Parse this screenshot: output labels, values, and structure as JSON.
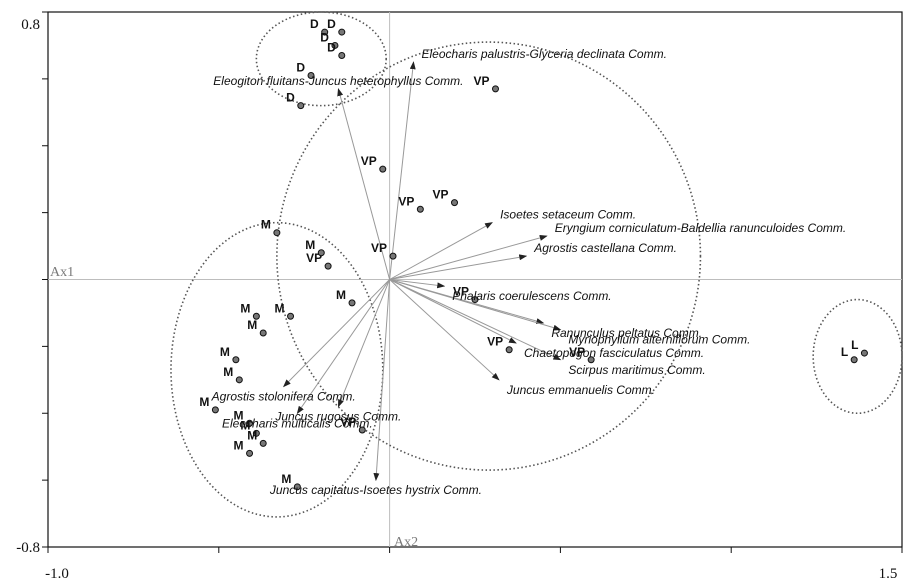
{
  "chart_data": {
    "type": "scatter",
    "title": "",
    "xlabel": "",
    "ylabel": "",
    "xlim": [
      -1.0,
      1.5
    ],
    "ylim": [
      -0.8,
      0.8
    ],
    "x_tick_labels": [
      "-1.0",
      "1.5"
    ],
    "y_tick_labels": [
      "0.8",
      "-0.8"
    ],
    "axis_names": {
      "horizontal": "Ax1",
      "vertical": "Ax2"
    },
    "grid": false,
    "legend": "none",
    "colors": {
      "axes": "#111111",
      "origin_lines": "#bdbdbd",
      "arrows": "#999999",
      "ellipses": "#555555",
      "points": "#777777"
    },
    "sites": [
      {
        "label": "D",
        "x": -0.19,
        "y": 0.74
      },
      {
        "label": "D",
        "x": -0.14,
        "y": 0.74
      },
      {
        "label": "D",
        "x": -0.16,
        "y": 0.7
      },
      {
        "label": "D",
        "x": -0.14,
        "y": 0.67
      },
      {
        "label": "D",
        "x": -0.23,
        "y": 0.61
      },
      {
        "label": "D",
        "x": -0.26,
        "y": 0.52
      },
      {
        "label": "VP",
        "x": 0.31,
        "y": 0.57
      },
      {
        "label": "VP",
        "x": -0.02,
        "y": 0.33
      },
      {
        "label": "VP",
        "x": 0.09,
        "y": 0.21
      },
      {
        "label": "VP",
        "x": 0.19,
        "y": 0.23
      },
      {
        "label": "VP",
        "x": 0.01,
        "y": 0.07
      },
      {
        "label": "VP",
        "x": -0.18,
        "y": 0.04
      },
      {
        "label": "VP",
        "x": 0.25,
        "y": -0.06
      },
      {
        "label": "VP",
        "x": 0.35,
        "y": -0.21
      },
      {
        "label": "VP",
        "x": 0.59,
        "y": -0.24
      },
      {
        "label": "VP",
        "x": -0.08,
        "y": -0.45
      },
      {
        "label": "M",
        "x": -0.33,
        "y": 0.14
      },
      {
        "label": "M",
        "x": -0.2,
        "y": 0.08
      },
      {
        "label": "M",
        "x": -0.11,
        "y": -0.07
      },
      {
        "label": "M",
        "x": -0.29,
        "y": -0.11
      },
      {
        "label": "M",
        "x": -0.39,
        "y": -0.11
      },
      {
        "label": "M",
        "x": -0.37,
        "y": -0.16
      },
      {
        "label": "M",
        "x": -0.45,
        "y": -0.24
      },
      {
        "label": "M",
        "x": -0.44,
        "y": -0.3
      },
      {
        "label": "M",
        "x": -0.51,
        "y": -0.39
      },
      {
        "label": "M",
        "x": -0.41,
        "y": -0.43
      },
      {
        "label": "M",
        "x": -0.39,
        "y": -0.46
      },
      {
        "label": "M",
        "x": -0.37,
        "y": -0.49
      },
      {
        "label": "M",
        "x": -0.41,
        "y": -0.52
      },
      {
        "label": "M",
        "x": -0.27,
        "y": -0.62
      },
      {
        "label": "L",
        "x": 1.39,
        "y": -0.22
      },
      {
        "label": "L",
        "x": 1.36,
        "y": -0.24
      }
    ],
    "communities": [
      {
        "name": "Eleocharis palustris-Glyceria declinata Comm.",
        "x": 0.07,
        "y": 0.65
      },
      {
        "name": "Eleogiton fluitans-Juncus heterophyllus Comm.",
        "x": -0.15,
        "y": 0.57
      },
      {
        "name": "Isoetes setaceum Comm.",
        "x": 0.3,
        "y": 0.17
      },
      {
        "name": "Eryngium corniculatum-Baldellia ranunculoides Comm.",
        "x": 0.46,
        "y": 0.13
      },
      {
        "name": "Agrostis castellana Comm.",
        "x": 0.4,
        "y": 0.07
      },
      {
        "name": "Phalaris coerulescens Comm.",
        "x": 0.16,
        "y": -0.02
      },
      {
        "name": "Ranunculus peltatus Comm.",
        "x": 0.45,
        "y": -0.13
      },
      {
        "name": "Myriophyllum alterniflorum Comm.",
        "x": 0.5,
        "y": -0.15
      },
      {
        "name": "Chaetopogon fasciculatus Comm.",
        "x": 0.37,
        "y": -0.19
      },
      {
        "name": "Scirpus maritimus Comm.",
        "x": 0.5,
        "y": -0.24
      },
      {
        "name": "Juncus emmanuelis Comm.",
        "x": 0.32,
        "y": -0.3
      },
      {
        "name": "Agrostis stolonifera Comm.",
        "x": -0.31,
        "y": -0.32
      },
      {
        "name": "Juncus rugosus Comm.",
        "x": -0.15,
        "y": -0.38
      },
      {
        "name": "Eleocharis multicalis Comm.",
        "x": -0.27,
        "y": -0.4
      },
      {
        "name": "Juncus capitatus-Isoetes hystrix Comm.",
        "x": -0.04,
        "y": -0.6
      }
    ],
    "groups": [
      {
        "name": "D",
        "cx": -0.2,
        "cy": 0.66,
        "rx": 0.19,
        "ry": 0.14
      },
      {
        "name": "VP",
        "cx": 0.29,
        "cy": 0.07,
        "rx": 0.62,
        "ry": 0.64
      },
      {
        "name": "M",
        "cx": -0.33,
        "cy": -0.27,
        "rx": 0.31,
        "ry": 0.44
      },
      {
        "name": "L",
        "cx": 1.37,
        "cy": -0.23,
        "rx": 0.13,
        "ry": 0.17
      }
    ]
  }
}
